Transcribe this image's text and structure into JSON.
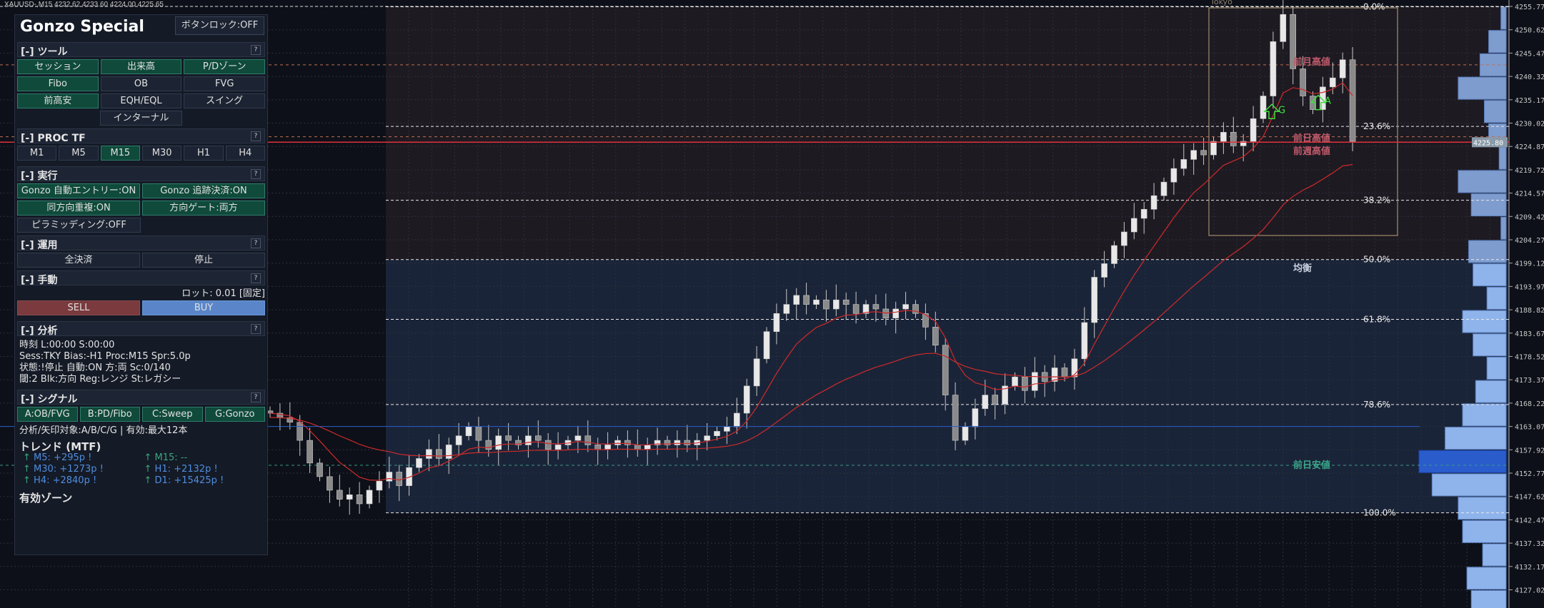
{
  "header": {
    "symbol_line": "XAUUSD-,M15  4232.62 4233.60 4224.00 4225.65"
  },
  "panel": {
    "title": "Gonzo Special",
    "lock_button": "ボタンロック:OFF",
    "tools": {
      "header": "[-] ツール",
      "help": "?",
      "buttons": [
        {
          "label": "セッション",
          "on": true
        },
        {
          "label": "出来高",
          "on": true
        },
        {
          "label": "P/Dゾーン",
          "on": true
        },
        {
          "label": "Fibo",
          "on": true
        },
        {
          "label": "OB",
          "on": false
        },
        {
          "label": "FVG",
          "on": false
        },
        {
          "label": "前高安",
          "on": true
        },
        {
          "label": "EQH/EQL",
          "on": false
        },
        {
          "label": "スイング",
          "on": false
        },
        {
          "label": "インターナル",
          "on": false
        }
      ]
    },
    "proc_tf": {
      "header": "[-] PROC TF",
      "help": "?",
      "items": [
        "M1",
        "M5",
        "M15",
        "M30",
        "H1",
        "H4"
      ],
      "selected": "M15"
    },
    "exec": {
      "header": "[-] 実行",
      "help": "?",
      "buttons": [
        {
          "label": "Gonzo 自動エントリー:ON",
          "on": true
        },
        {
          "label": "Gonzo 追跡決済:ON",
          "on": true
        },
        {
          "label": "同方向重複:ON",
          "on": true
        },
        {
          "label": "方向ゲート:両方",
          "on": true
        },
        {
          "label": "ピラミッディング:OFF",
          "on": false
        }
      ]
    },
    "ops": {
      "header": "[-] 運用",
      "help": "?",
      "close_all": "全決済",
      "stop": "停止"
    },
    "manual": {
      "header": "[-] 手動",
      "help": "?",
      "lot": "ロット: 0.01 [固定]",
      "sell": "SELL",
      "buy": "BUY"
    },
    "analysis": {
      "header": "[-] 分析",
      "help": "?",
      "lines": [
        "時刻 L:00:00  S:00:00",
        "Sess:TKY  Bias:-H1  Proc:M15  Spr:5.0p",
        "状態:!停止  自動:ON  方:両  Sc:0/140",
        "閾:2  Blk:方向  Reg:レンジ  St:レガシー"
      ]
    },
    "signal": {
      "header": "[-] シグナル",
      "help": "?",
      "buttons": [
        "A:OB/FVG",
        "B:PD/Fibo",
        "C:Sweep",
        "G:Gonzo"
      ],
      "note": "分析/矢印対象:A/B/C/G | 有効:最大12本"
    },
    "trend": {
      "title": "トレンド (MTF)",
      "items": [
        {
          "arrow": "↑",
          "label": "M5: +295p !",
          "color": "#4f8ee0"
        },
        {
          "arrow": "↑",
          "label": "M15: --",
          "color": "#3aa57a"
        },
        {
          "arrow": "↑",
          "label": "M30: +1273p !",
          "color": "#4f8ee0"
        },
        {
          "arrow": "↑",
          "label": "H1: +2132p !",
          "color": "#4f8ee0"
        },
        {
          "arrow": "↑",
          "label": "H4: +2840p !",
          "color": "#4f8ee0"
        },
        {
          "arrow": "↑",
          "label": "D1: +15425p !",
          "color": "#4f8ee0"
        }
      ]
    },
    "zones_title": "有効ゾーン"
  },
  "chart": {
    "price_ticks": [
      4255.77,
      4250.62,
      4245.47,
      4240.32,
      4235.17,
      4230.02,
      4224.87,
      4219.72,
      4214.57,
      4209.42,
      4204.27,
      4199.12,
      4193.97,
      4188.82,
      4183.67,
      4178.52,
      4173.37,
      4168.22,
      4163.07,
      4157.92,
      4152.77,
      4147.62,
      4142.47,
      4137.32,
      4132.17,
      4127.02
    ],
    "current_price": "4225.80",
    "fib_levels": [
      {
        "label": "0.0%",
        "price": 4255.7
      },
      {
        "label": "23.6%",
        "price": 4229.3
      },
      {
        "label": "38.2%",
        "price": 4213.0
      },
      {
        "label": "50.0%",
        "price": 4199.9
      },
      {
        "label": "61.8%",
        "price": 4186.7
      },
      {
        "label": "78.6%",
        "price": 4167.9
      },
      {
        "label": "100.0%",
        "price": 4144.0
      }
    ],
    "level_labels": [
      {
        "text": "前月高値",
        "price": 4243.5,
        "color": "#c05a6a"
      },
      {
        "text": "前日高値",
        "price": 4226.6,
        "color": "#c05a6a"
      },
      {
        "text": "前週高値",
        "price": 4223.8,
        "color": "#c05a6a"
      },
      {
        "text": "均衡",
        "price": 4198.0,
        "color": "#c9d2e0"
      },
      {
        "text": "前日安値",
        "price": 4154.5,
        "color": "#3aa58a"
      }
    ],
    "session_label": "Tokyo",
    "signal_arrows": [
      "G",
      "A"
    ],
    "poc_price": 4163.07,
    "closes": [
      4166,
      4165,
      4164,
      4160,
      4155,
      4152,
      4149,
      4147,
      4148,
      4146,
      4149,
      4151,
      4153,
      4150,
      4154,
      4156,
      4158,
      4156,
      4159,
      4161,
      4163,
      4160,
      4158,
      4161,
      4160,
      4159,
      4161,
      4160,
      4158,
      4159,
      4160,
      4161,
      4159,
      4158,
      4159,
      4160,
      4159,
      4158,
      4159,
      4160,
      4159,
      4160,
      4159,
      4160,
      4161,
      4162,
      4163,
      4166,
      4172,
      4178,
      4184,
      4188,
      4190,
      4192,
      4190,
      4191,
      4189,
      4191,
      4190,
      4188,
      4190,
      4189,
      4187,
      4189,
      4190,
      4188,
      4185,
      4181,
      4170,
      4160,
      4163,
      4167,
      4170,
      4168,
      4172,
      4174,
      4171,
      4175,
      4173,
      4176,
      4174,
      4178,
      4186,
      4196,
      4199,
      4203,
      4206,
      4209,
      4211,
      4214,
      4217,
      4220,
      4222,
      4224,
      4223,
      4226,
      4228,
      4225,
      4226,
      4231,
      4236,
      4248,
      4254,
      4242,
      4236,
      4233,
      4238,
      4240,
      4244,
      4226
    ],
    "volume_profile": [
      0.06,
      0.2,
      0.3,
      0.55,
      0.25,
      0.2,
      0.08,
      0.55,
      0.4,
      0.06,
      0.43,
      0.38,
      0.22,
      0.5,
      0.38,
      0.22,
      0.35,
      0.5,
      0.7,
      1.0,
      0.85,
      0.55,
      0.5,
      0.27,
      0.45,
      0.4
    ],
    "colors": {
      "premium": "#1e1a22",
      "discount": "#1a2438",
      "ma": "#d02a2a",
      "price_line": "#e0303a",
      "poc": "#2a5ccc",
      "volume": "#8fb4ec"
    }
  }
}
